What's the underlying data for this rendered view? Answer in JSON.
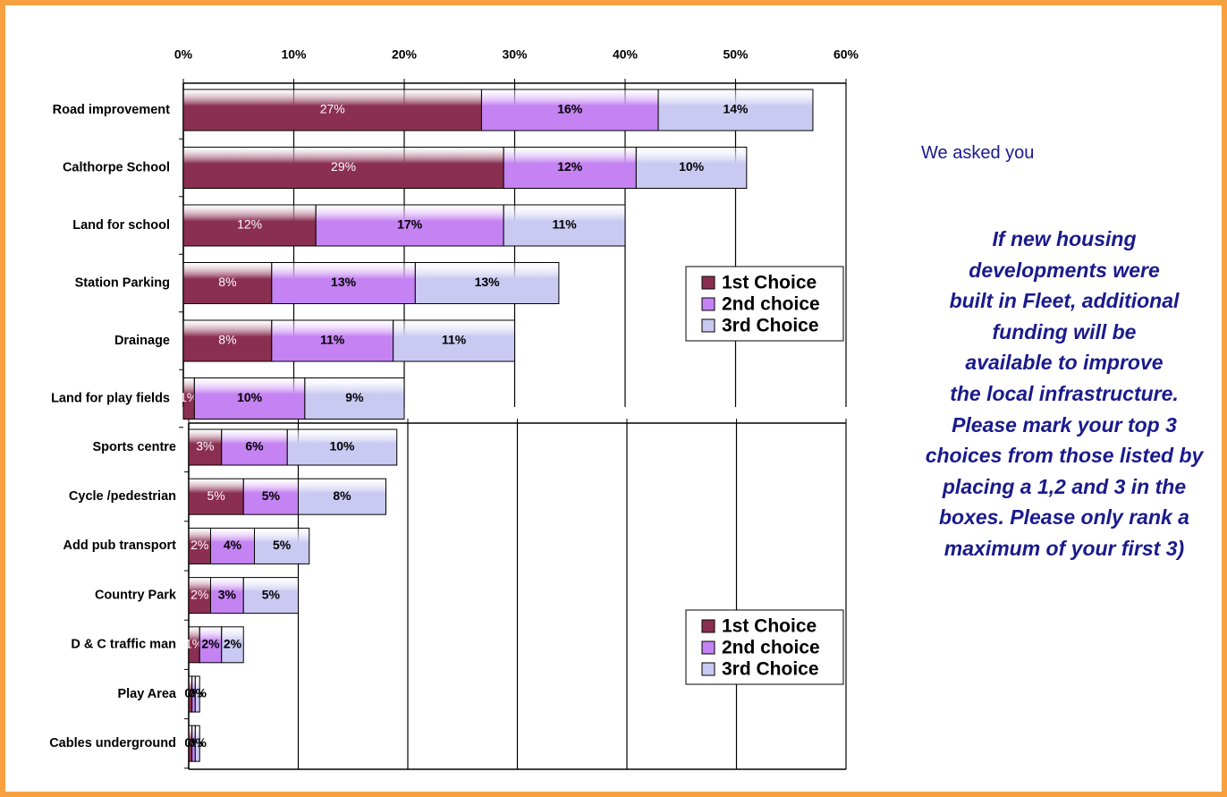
{
  "chart_data": [
    {
      "type": "bar",
      "orientation": "horizontal",
      "stacked": true,
      "categories": [
        "Road improvement",
        "Calthorpe School",
        "Land for school",
        "Station Parking",
        "Drainage",
        "Land for play fields"
      ],
      "series": [
        {
          "name": "1st Choice",
          "color": "#8b2f52",
          "values": [
            27,
            29,
            12,
            8,
            8,
            1
          ],
          "value_labels": [
            "27%",
            "29%",
            "12%",
            "8%",
            "8%",
            "1%"
          ]
        },
        {
          "name": "2nd choice",
          "color": "#c482f2",
          "values": [
            16,
            12,
            17,
            13,
            11,
            10
          ],
          "value_labels": [
            "16%",
            "12%",
            "17%",
            "13%",
            "11%",
            "10%"
          ]
        },
        {
          "name": "3rd Choice",
          "color": "#c9c9f2",
          "values": [
            14,
            10,
            11,
            13,
            11,
            9
          ],
          "value_labels": [
            "14%",
            "10%",
            "11%",
            "13%",
            "11%",
            "9%"
          ]
        }
      ],
      "xlim": [
        0,
        60
      ],
      "xticks": [
        {
          "value": 0,
          "label": "0%"
        },
        {
          "value": 10,
          "label": "10%"
        },
        {
          "value": 20,
          "label": "20%"
        },
        {
          "value": 30,
          "label": "30%"
        },
        {
          "value": 40,
          "label": "40%"
        },
        {
          "value": 50,
          "label": "50%"
        },
        {
          "value": 60,
          "label": "60%"
        }
      ],
      "grid": true,
      "legend": "right"
    },
    {
      "type": "bar",
      "orientation": "horizontal",
      "stacked": true,
      "categories": [
        "Sports centre",
        "Cycle /pedestrian",
        "Add pub transport",
        "Country Park",
        "D & C traffic man",
        "Play Area",
        "Cables underground"
      ],
      "series": [
        {
          "name": "1st Choice",
          "color": "#8b2f52",
          "values": [
            3,
            5,
            2,
            2,
            1,
            0.3,
            0.3
          ],
          "value_labels": [
            "3%",
            "5%",
            "2%",
            "2%",
            "1%",
            "0%",
            "0%"
          ]
        },
        {
          "name": "2nd choice",
          "color": "#c482f2",
          "values": [
            6,
            5,
            4,
            3,
            2,
            0.3,
            0.3
          ],
          "value_labels": [
            "6%",
            "5%",
            "4%",
            "3%",
            "2%",
            "0%",
            "0%"
          ]
        },
        {
          "name": "3rd Choice",
          "color": "#c9c9f2",
          "values": [
            10,
            8,
            5,
            5,
            2,
            0.4,
            0.4
          ],
          "value_labels": [
            "10%",
            "8%",
            "5%",
            "5%",
            "2%",
            "0%",
            "0%"
          ]
        }
      ],
      "xlim": [
        0,
        60
      ],
      "xticks": [
        0,
        10,
        20,
        30,
        40,
        50,
        60
      ],
      "grid": true,
      "legend": "right"
    }
  ],
  "side": {
    "intro": "We asked you",
    "question": [
      "If new housing",
      "developments were",
      "built in Fleet, additional",
      "funding will be",
      "available to improve",
      "the local infrastructure.",
      "Please mark your top 3",
      "choices from those listed by",
      "placing a 1,2 and 3 in the",
      "boxes.  Please only rank a",
      "maximum of your first 3)"
    ]
  }
}
